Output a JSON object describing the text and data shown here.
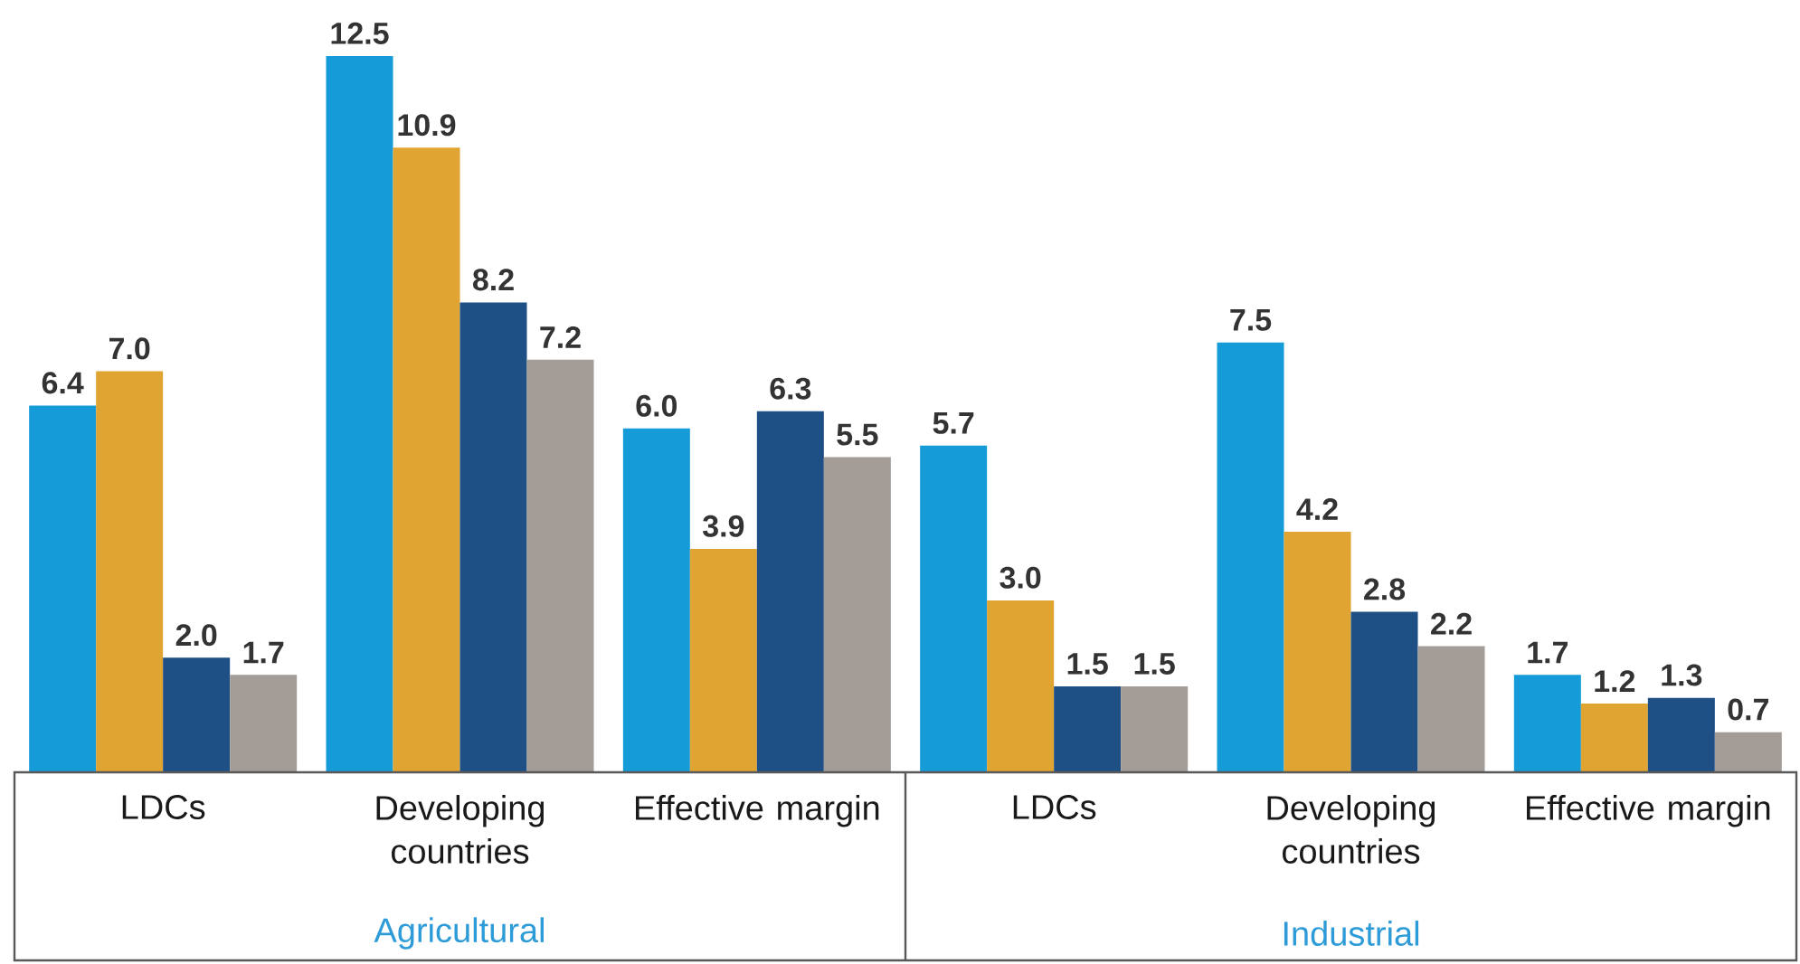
{
  "chart_data": {
    "type": "bar",
    "categories": [
      "LDCs",
      "Developing countries",
      "Effective margin",
      "LDCs",
      "Developing countries",
      "Effective margin"
    ],
    "series": [
      {
        "color": "#159bd7",
        "values": [
          6.4,
          12.5,
          6.0,
          5.7,
          7.5,
          1.7
        ],
        "value_labels": [
          "6.4",
          "12.5",
          "6.0",
          "5.7",
          "7.5",
          "1.7"
        ]
      },
      {
        "color": "#e0a433",
        "values": [
          7.0,
          10.9,
          3.9,
          3.0,
          4.2,
          1.2
        ],
        "value_labels": [
          "7.0",
          "10.9",
          "3.9",
          "3.0",
          "4.2",
          "1.2"
        ]
      },
      {
        "color": "#1e4f85",
        "values": [
          2.0,
          8.2,
          6.3,
          1.5,
          2.8,
          1.3
        ],
        "value_labels": [
          "2.0",
          "8.2",
          "6.3",
          "1.5",
          "2.8",
          "1.3"
        ]
      },
      {
        "color": "#a39c97",
        "values": [
          1.7,
          7.2,
          5.5,
          1.5,
          2.2,
          0.7
        ],
        "value_labels": [
          "1.7",
          "7.2",
          "5.5",
          "1.5",
          "2.2",
          "0.7"
        ]
      }
    ],
    "annotations": [
      "Agricultural",
      "Industrial"
    ]
  }
}
